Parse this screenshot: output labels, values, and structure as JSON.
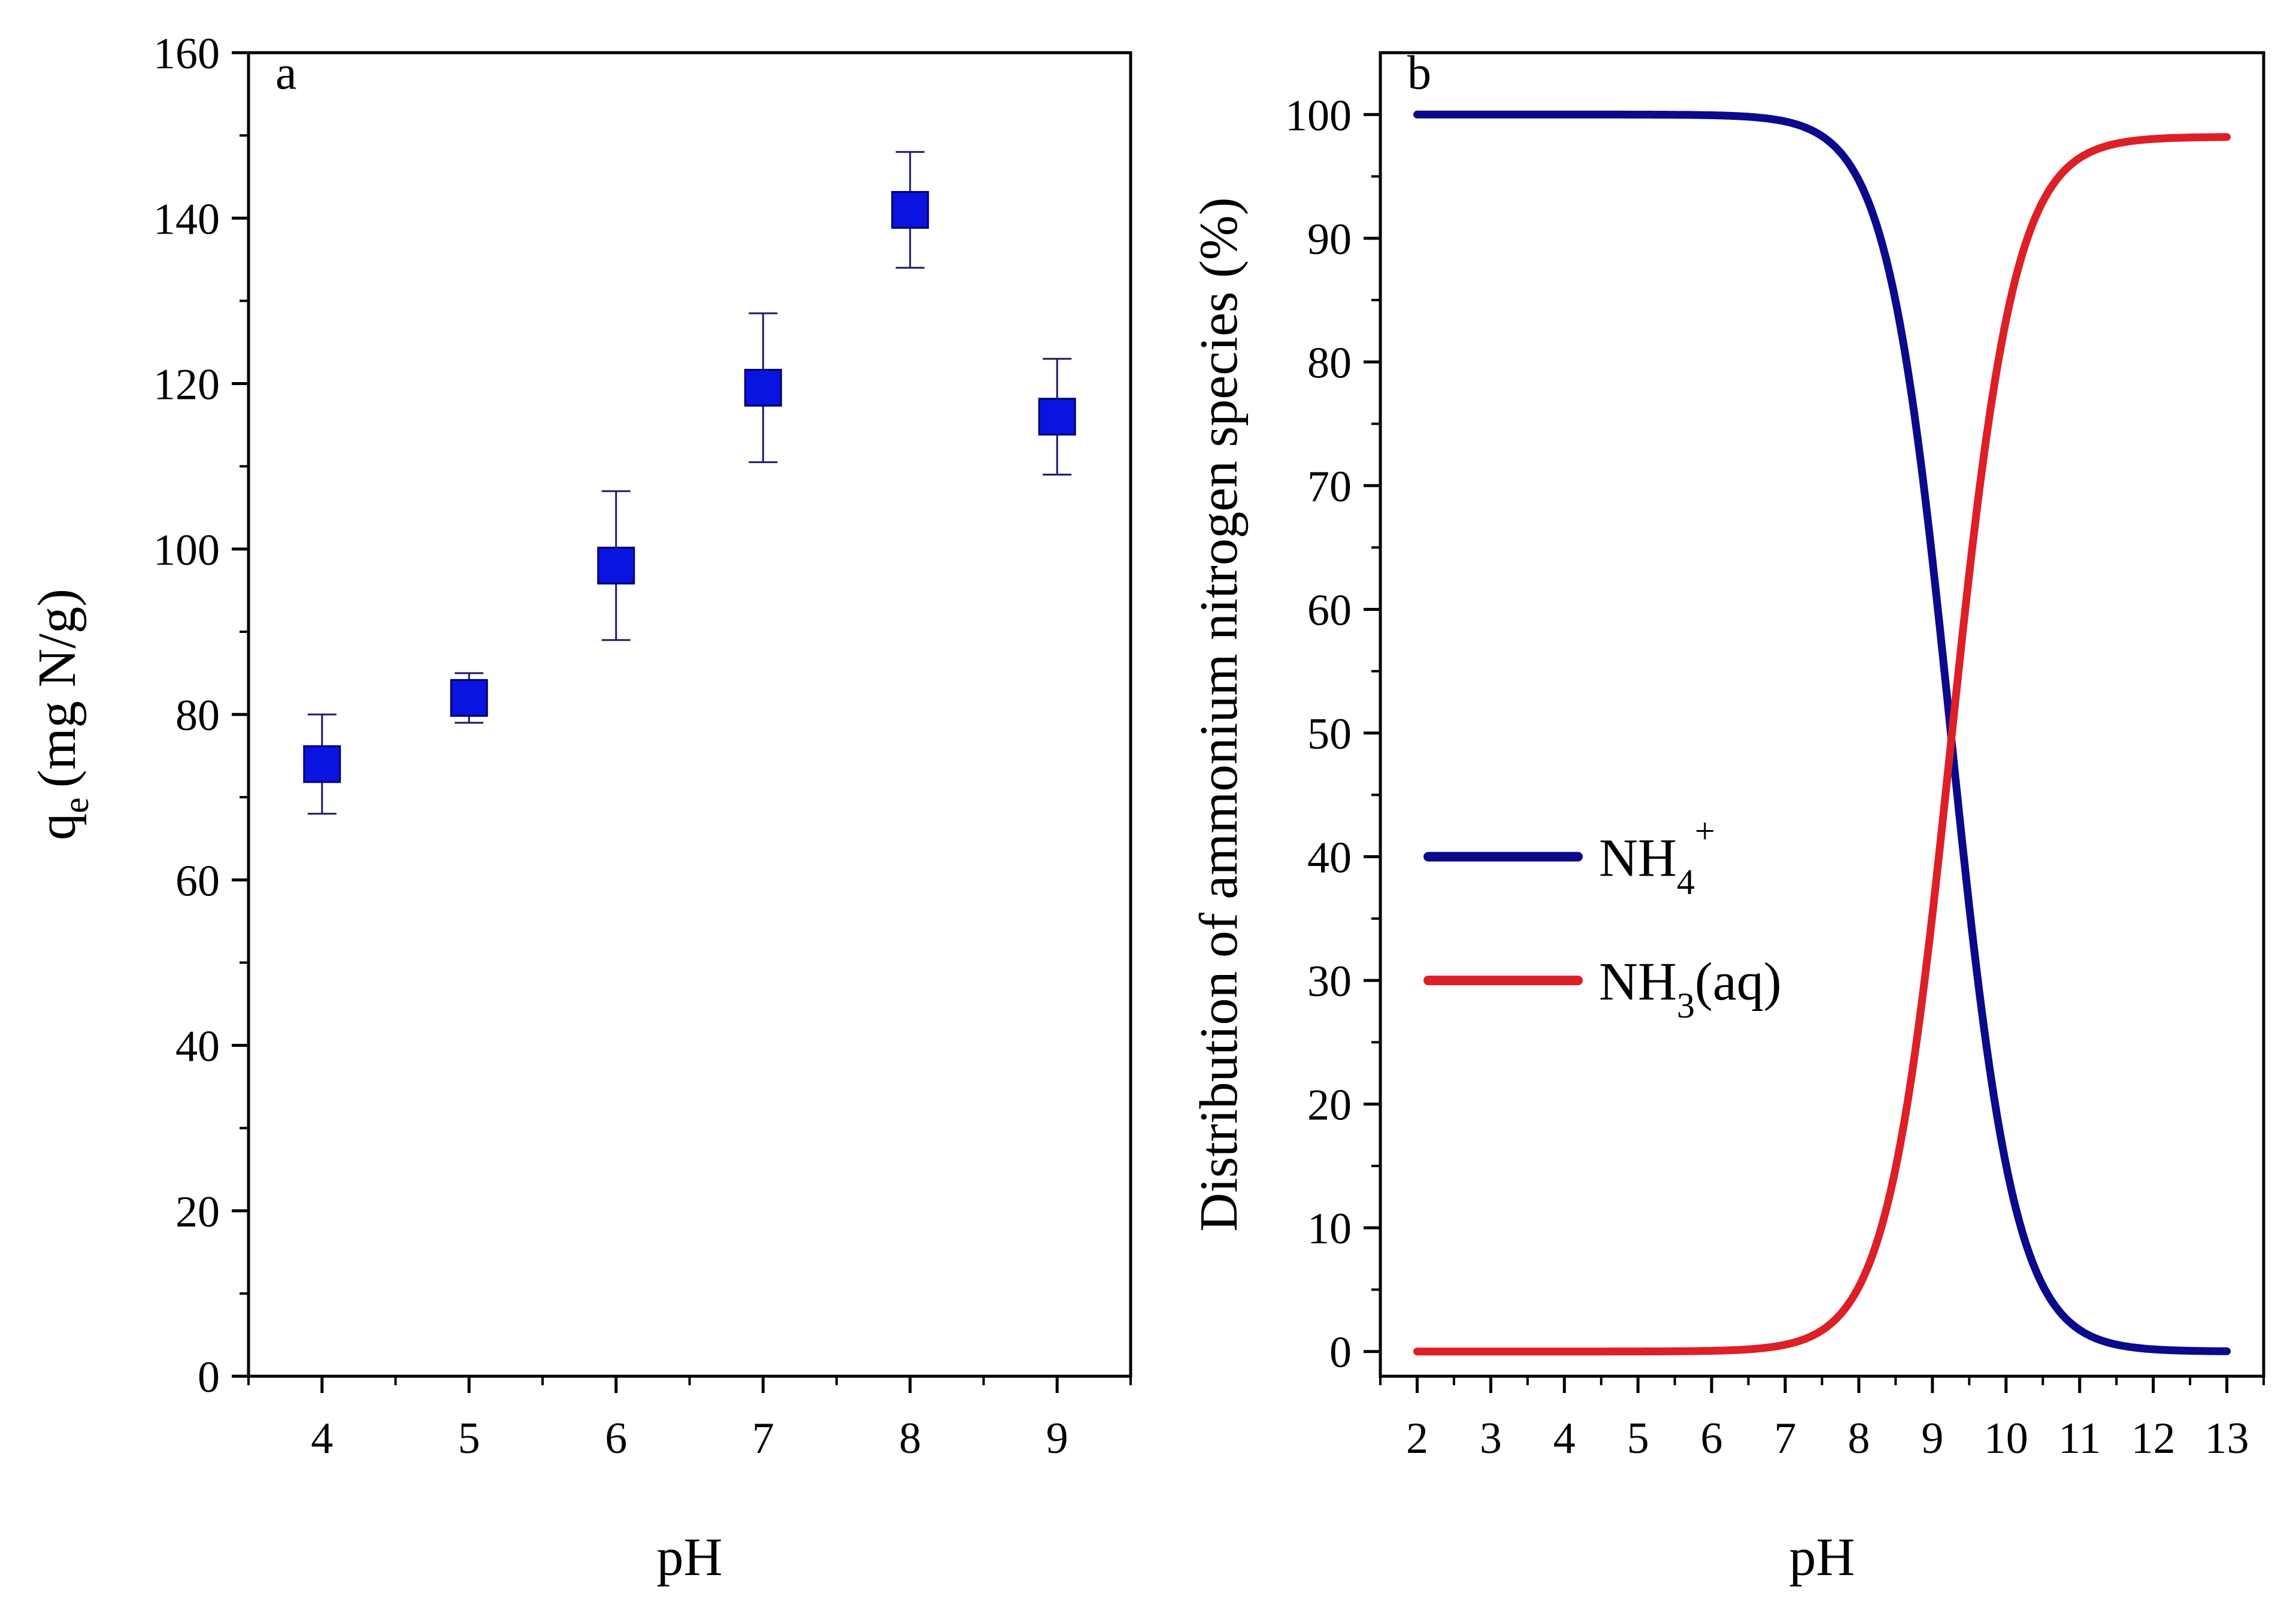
{
  "chart_data": [
    {
      "panel": "a",
      "type": "scatter",
      "xlabel": "pH",
      "ylabel": "q",
      "ylabel_subscript": "e",
      "ylabel_rest": "(mg N/g)",
      "xlim": [
        3.5,
        9.5
      ],
      "ylim": [
        0,
        160
      ],
      "xticks": [
        4,
        5,
        6,
        7,
        8,
        9
      ],
      "yticks": [
        0,
        20,
        40,
        60,
        80,
        100,
        120,
        140,
        160
      ],
      "grid": false,
      "marker_color": "#0a14e0",
      "points": [
        {
          "x": 4,
          "y": 74,
          "err_low": 68,
          "err_high": 80
        },
        {
          "x": 5,
          "y": 82,
          "err_low": 79,
          "err_high": 85
        },
        {
          "x": 6,
          "y": 98,
          "err_low": 89,
          "err_high": 107
        },
        {
          "x": 7,
          "y": 119.5,
          "err_low": 110.5,
          "err_high": 128.5
        },
        {
          "x": 8,
          "y": 141,
          "err_low": 134,
          "err_high": 148
        },
        {
          "x": 9,
          "y": 116,
          "err_low": 109,
          "err_high": 123
        }
      ]
    },
    {
      "panel": "b",
      "type": "line",
      "xlabel": "pH",
      "ylabel": "Distribution of ammonium nitrogen species (%)",
      "xlim": [
        1.5,
        13.5
      ],
      "ylim": [
        -2,
        105
      ],
      "xticks": [
        2,
        3,
        4,
        5,
        6,
        7,
        8,
        9,
        10,
        11,
        12,
        13
      ],
      "yticks": [
        0,
        10,
        20,
        30,
        40,
        50,
        60,
        70,
        80,
        90,
        100
      ],
      "grid": false,
      "pKa": 9.25,
      "nh3_max": 98.2,
      "legend_position": "center-left",
      "series": [
        {
          "name_main": "NH",
          "name_sub": "4",
          "name_sup": "+",
          "name_tail": "",
          "color": "#0a0a8c",
          "kind": "nh4"
        },
        {
          "name_main": "NH",
          "name_sub": "3",
          "name_sup": "",
          "name_tail": "(aq)",
          "color": "#dd1f26",
          "kind": "nh3"
        }
      ]
    }
  ]
}
